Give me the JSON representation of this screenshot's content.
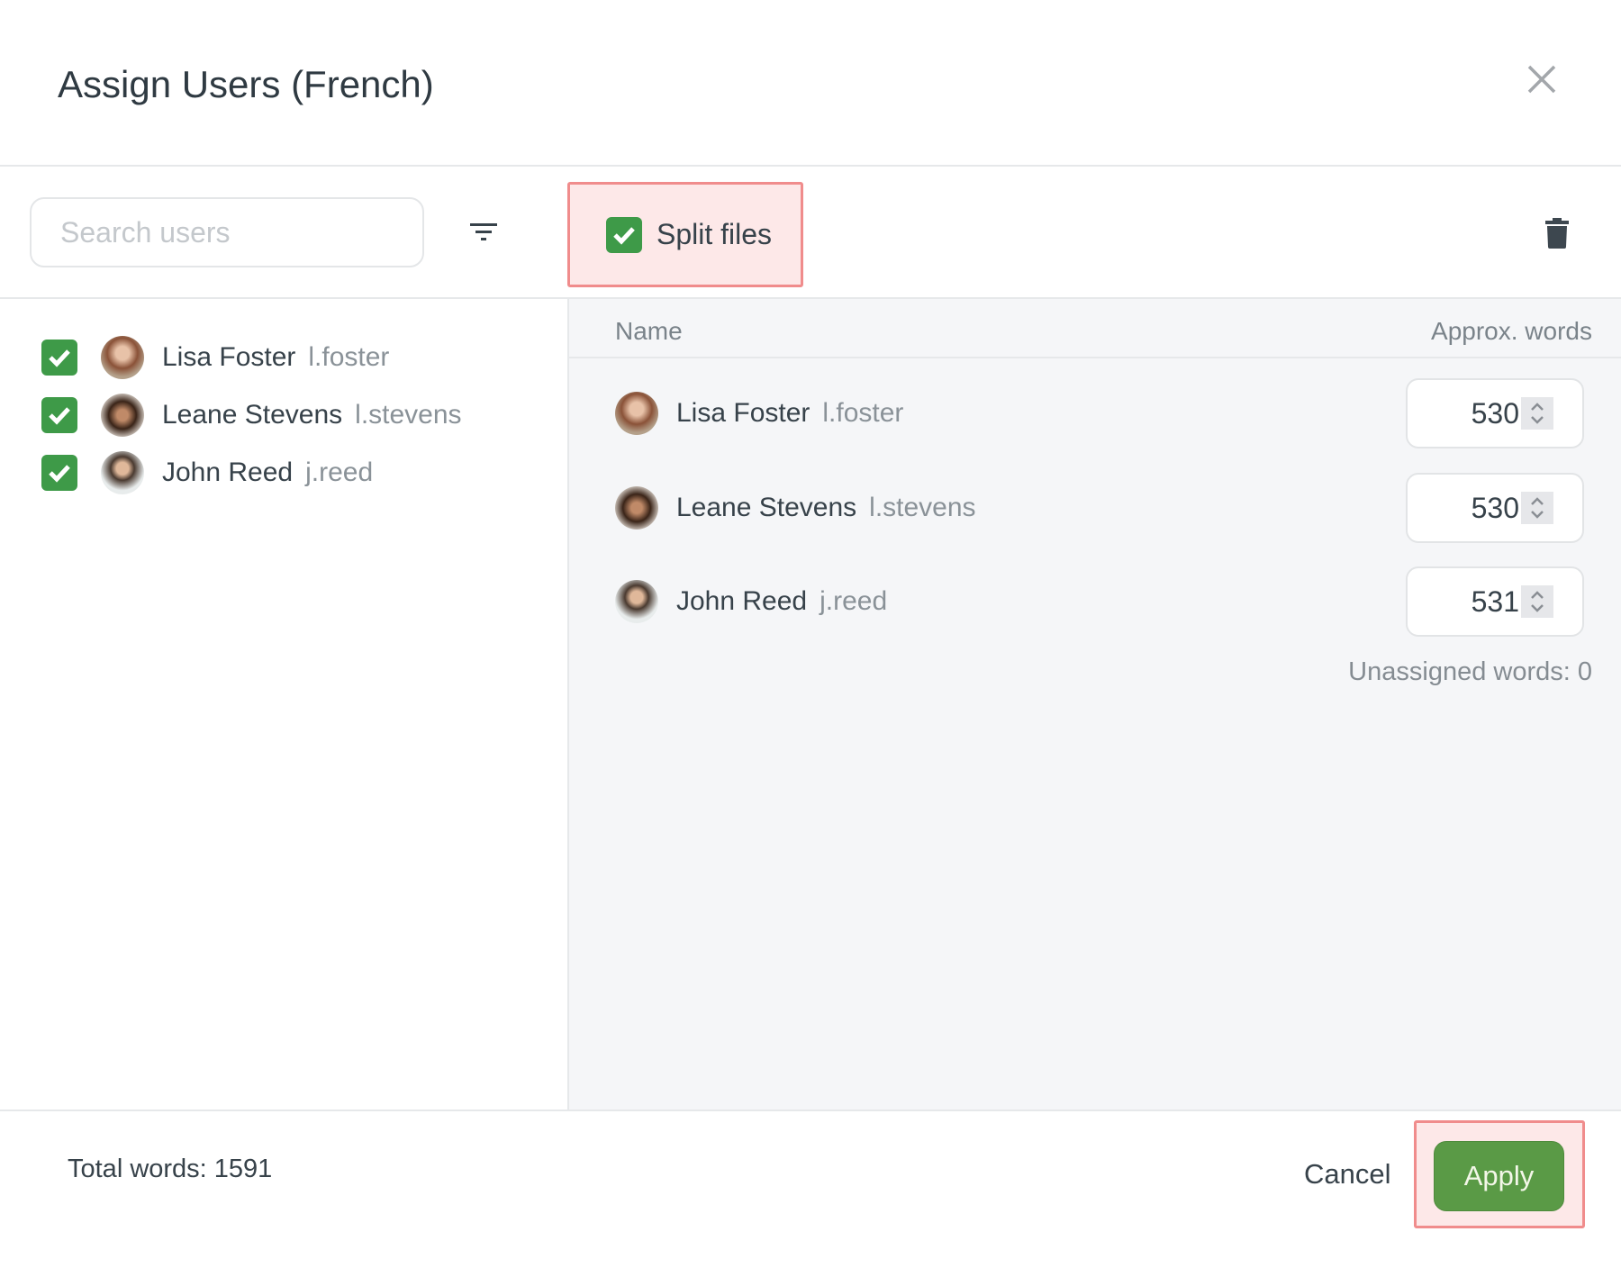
{
  "dialog": {
    "title": "Assign Users (French)"
  },
  "toolbar": {
    "search_placeholder": "Search users",
    "split_files_label": "Split files",
    "split_files_checked": true
  },
  "user_list": [
    {
      "name": "Lisa Foster",
      "username": "l.foster",
      "checked": true
    },
    {
      "name": "Leane Stevens",
      "username": "l.stevens",
      "checked": true
    },
    {
      "name": "John Reed",
      "username": "j.reed",
      "checked": true
    }
  ],
  "assignment": {
    "columns": {
      "name": "Name",
      "words": "Approx. words"
    },
    "rows": [
      {
        "name": "Lisa Foster",
        "username": "l.foster",
        "words": "530"
      },
      {
        "name": "Leane Stevens",
        "username": "l.stevens",
        "words": "530"
      },
      {
        "name": "John Reed",
        "username": "j.reed",
        "words": "531"
      }
    ],
    "unassigned": "Unassigned words: 0"
  },
  "footer": {
    "total": "Total words: 1591",
    "cancel": "Cancel",
    "apply": "Apply"
  },
  "colors": {
    "accent": "#5a9a46",
    "checkbox": "#3e9a48",
    "highlight": "#f08c8c"
  }
}
